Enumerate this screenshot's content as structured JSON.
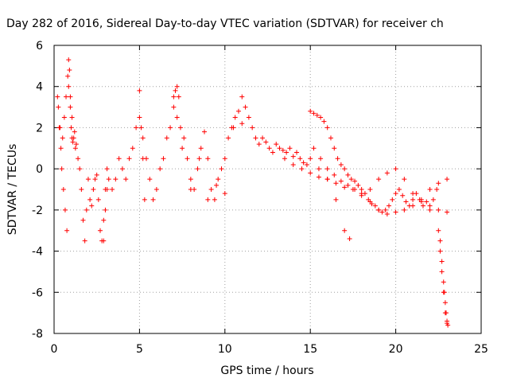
{
  "chart_data": {
    "type": "scatter",
    "title": "Day 282 of 2016, Sidereal Day-to-day VTEC variation (SDTVAR) for receiver ch",
    "xlabel": "GPS time / hours",
    "ylabel": "SDTVAR / TECUs",
    "xlim": [
      0,
      25
    ],
    "ylim": [
      -8,
      6
    ],
    "xticks": [
      0,
      5,
      10,
      15,
      20,
      25
    ],
    "xtick_labels": [
      "0",
      "5",
      "10",
      "15",
      "20",
      "25"
    ],
    "yticks": [
      -8,
      -6,
      -4,
      -2,
      0,
      2,
      4,
      6
    ],
    "ytick_labels": [
      "-8",
      "-6",
      "-4",
      "-2",
      "0",
      "2",
      "4",
      "6"
    ],
    "grid": true,
    "legend": "none",
    "marker": "plus",
    "series": [
      {
        "name": "SDTVAR",
        "color": "#ff0000",
        "x": [
          0.2,
          0.3,
          0.4,
          0.5,
          0.6,
          0.7,
          0.8,
          0.85,
          0.9,
          0.95,
          1.0,
          1.05,
          1.1,
          1.2,
          1.3,
          1.4,
          1.5,
          1.6,
          1.7,
          1.8,
          1.9,
          2.0,
          2.1,
          2.2,
          2.3,
          2.4,
          2.5,
          2.6,
          2.7,
          2.8,
          2.9,
          3.0,
          3.1,
          3.2,
          3.4,
          3.6,
          3.8,
          4.0,
          4.2,
          4.4,
          4.6,
          4.8,
          5.0,
          5.2,
          5.4,
          5.6,
          5.8,
          6.0,
          6.2,
          6.4,
          6.6,
          6.8,
          7.0,
          7.1,
          7.2,
          7.3,
          7.4,
          7.6,
          7.8,
          8.0,
          8.2,
          8.4,
          8.6,
          8.8,
          9.0,
          9.2,
          9.4,
          9.6,
          9.8,
          10.0,
          10.2,
          10.4,
          10.6,
          10.8,
          11.0,
          11.2,
          11.4,
          11.6,
          11.8,
          12.0,
          12.2,
          12.4,
          12.6,
          12.8,
          13.0,
          13.2,
          13.4,
          13.6,
          13.8,
          14.0,
          14.2,
          14.4,
          14.6,
          14.8,
          15.0,
          15.2,
          15.4,
          15.6,
          15.8,
          16.0,
          16.2,
          16.4,
          16.6,
          16.8,
          17.0,
          17.2,
          17.4,
          17.6,
          17.8,
          18.0,
          18.2,
          18.4,
          18.6,
          18.8,
          19.0,
          19.2,
          19.4,
          19.6,
          19.8,
          20.0,
          20.2,
          20.4,
          20.6,
          20.8,
          21.0,
          21.2,
          21.4,
          21.6,
          21.8,
          22.0,
          22.2,
          22.4,
          22.5,
          22.6,
          22.7,
          22.8,
          22.9,
          23.0,
          0.25,
          0.35,
          0.45,
          0.55,
          0.65,
          0.75,
          0.85,
          0.95,
          1.05,
          1.15,
          1.25,
          2.9,
          3.0,
          3.1,
          5.0,
          5.1,
          5.2,
          5.3,
          7.0,
          7.2,
          7.5,
          8.0,
          8.5,
          9.0,
          9.5,
          10.0,
          10.5,
          11.0,
          15.0,
          15.5,
          16.0,
          16.5,
          17.0,
          17.3,
          15.2,
          15.6,
          16.0,
          16.4,
          16.8,
          17.2,
          17.6,
          18.0,
          18.5,
          19.0,
          19.5,
          20.0,
          20.5,
          21.0,
          21.5,
          22.0,
          22.5,
          23.0,
          13.5,
          14.0,
          14.5,
          15.0,
          15.5,
          16.0,
          16.5,
          17.0,
          17.5,
          18.0,
          18.5,
          19.0,
          19.5,
          20.0,
          20.5,
          21.0,
          21.5,
          22.0,
          22.5,
          23.0,
          22.6,
          22.7,
          22.8,
          22.85,
          22.9,
          22.95,
          23.0,
          23.05
        ],
        "y": [
          3.5,
          2.0,
          1.0,
          1.5,
          2.5,
          3.5,
          4.5,
          5.3,
          4.8,
          3.5,
          2.0,
          1.5,
          1.3,
          1.8,
          1.2,
          0.5,
          0.0,
          -1.0,
          -2.5,
          -3.5,
          -2.0,
          -0.5,
          -1.5,
          -1.8,
          -1.0,
          -0.5,
          -0.3,
          -1.5,
          -3.0,
          -3.5,
          -2.5,
          -1.0,
          0.0,
          -0.5,
          -1.0,
          -0.5,
          0.5,
          0.0,
          -0.5,
          0.5,
          1.0,
          2.0,
          2.5,
          1.5,
          0.5,
          -0.5,
          -1.5,
          -1.0,
          0.0,
          0.5,
          1.5,
          2.0,
          3.0,
          3.8,
          4.0,
          3.5,
          2.0,
          1.5,
          0.5,
          -0.5,
          -1.0,
          0.0,
          1.0,
          1.8,
          0.5,
          -1.0,
          -1.5,
          -0.5,
          0.0,
          0.5,
          1.5,
          2.0,
          2.5,
          2.8,
          2.2,
          3.0,
          2.5,
          2.0,
          1.5,
          1.2,
          1.5,
          1.3,
          1.0,
          0.8,
          1.2,
          1.0,
          0.9,
          0.8,
          1.0,
          0.6,
          0.8,
          0.5,
          0.3,
          0.2,
          2.8,
          2.7,
          2.6,
          2.5,
          2.3,
          2.0,
          1.5,
          1.0,
          0.5,
          0.2,
          0.0,
          -0.3,
          -0.5,
          -0.6,
          -0.8,
          -1.0,
          -1.2,
          -1.5,
          -1.7,
          -1.8,
          -2.0,
          -2.1,
          -2.0,
          -1.8,
          -1.5,
          -1.2,
          -1.0,
          -1.3,
          -1.6,
          -1.8,
          -1.5,
          -1.2,
          -1.5,
          -1.8,
          -1.6,
          -2.0,
          -1.5,
          -1.0,
          -3.0,
          -4.0,
          -5.0,
          -6.0,
          -7.0,
          -7.5,
          3.0,
          2.0,
          0.0,
          -1.0,
          -2.0,
          -3.0,
          4.0,
          3.0,
          2.5,
          1.5,
          1.0,
          -3.5,
          -2.0,
          -1.0,
          3.8,
          2.0,
          0.5,
          -1.5,
          3.5,
          2.5,
          1.0,
          -1.0,
          0.5,
          -1.5,
          -0.8,
          -1.2,
          2.0,
          3.5,
          0.5,
          0.0,
          -0.5,
          -1.5,
          -3.0,
          -3.4,
          1.0,
          0.5,
          0.0,
          -0.3,
          -0.6,
          -0.8,
          -1.0,
          -1.2,
          -1.6,
          -2.0,
          -2.2,
          -2.1,
          -2.0,
          -1.8,
          -1.6,
          -1.8,
          -2.0,
          -2.1,
          0.5,
          0.2,
          0.0,
          -0.2,
          -0.4,
          -0.5,
          -0.7,
          -0.9,
          -1.0,
          -1.3,
          -1.0,
          -0.5,
          -0.2,
          0.0,
          -0.5,
          -1.2,
          -1.5,
          -1.0,
          -0.7,
          -0.5,
          -3.5,
          -4.5,
          -5.5,
          -6.0,
          -6.5,
          -7.0,
          -7.4,
          -7.6
        ]
      }
    ]
  }
}
